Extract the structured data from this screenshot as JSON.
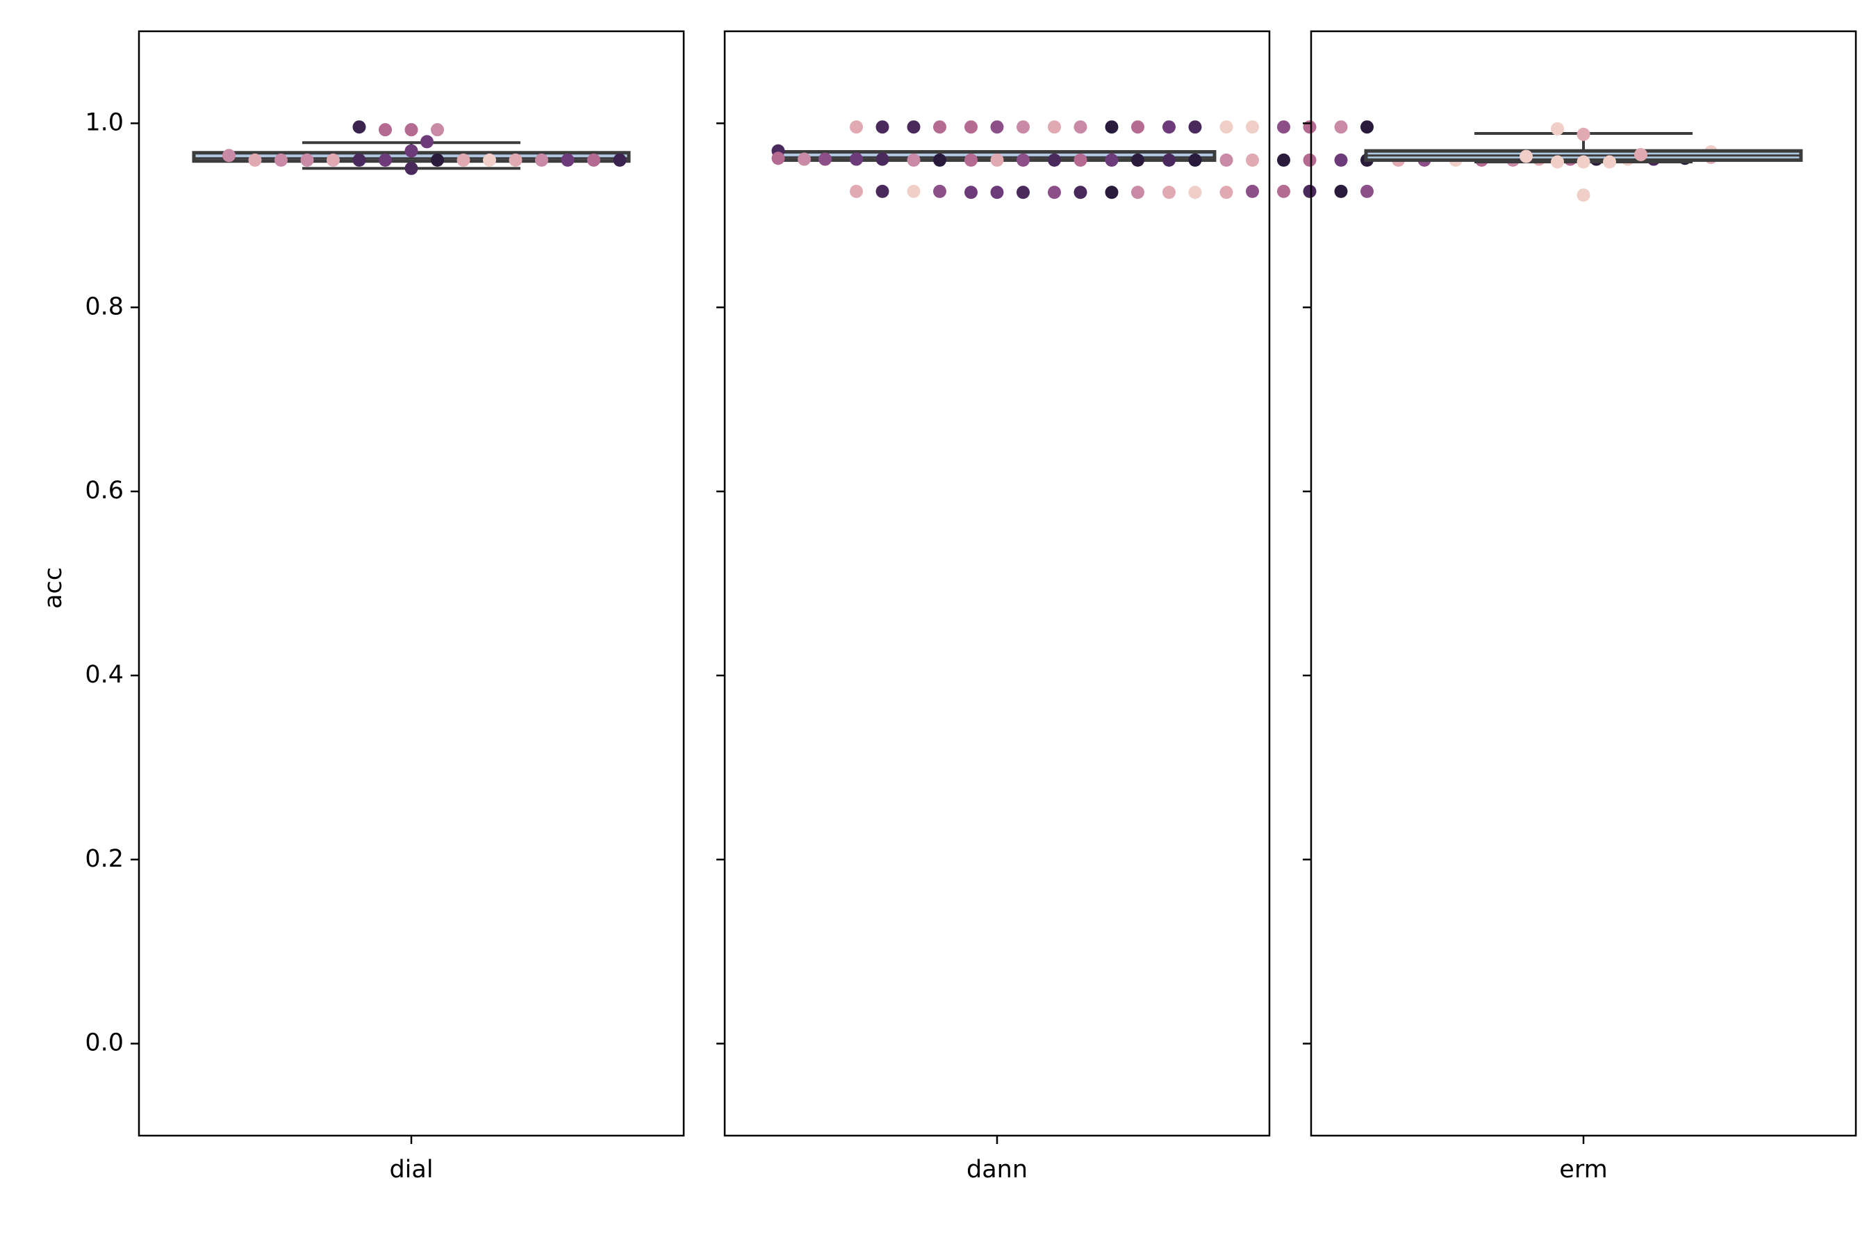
{
  "chart_data": {
    "type": "box-swarm",
    "ylabel": "acc",
    "ylim": [
      -0.1,
      1.1
    ],
    "yticks": [
      "0.0",
      "0.2",
      "0.4",
      "0.6",
      "0.8",
      "1.0"
    ],
    "ytick_values": [
      0.0,
      0.2,
      0.4,
      0.6,
      0.8,
      1.0
    ],
    "grid": false,
    "box_fill": "#b0c8e2",
    "box_edge": "#3c3c3c",
    "panels": [
      {
        "category": "dial",
        "box": {
          "q1": 0.959,
          "median": 0.962,
          "q3": 0.968,
          "whisker_low": 0.951,
          "whisker_high": 0.979
        },
        "points": [
          {
            "x": -0.1,
            "y": 0.996,
            "c": "#3b2450"
          },
          {
            "x": -0.05,
            "y": 0.993,
            "c": "#b56a92"
          },
          {
            "x": 0.0,
            "y": 0.993,
            "c": "#b56a92"
          },
          {
            "x": 0.05,
            "y": 0.993,
            "c": "#c98aa5"
          },
          {
            "x": 0.03,
            "y": 0.98,
            "c": "#6e3b7a"
          },
          {
            "x": 0.0,
            "y": 0.97,
            "c": "#6e3b7a"
          },
          {
            "x": -0.35,
            "y": 0.965,
            "c": "#c98aa5"
          },
          {
            "x": -0.3,
            "y": 0.96,
            "c": "#e1a9b2"
          },
          {
            "x": -0.25,
            "y": 0.96,
            "c": "#c98aa5"
          },
          {
            "x": -0.2,
            "y": 0.96,
            "c": "#c98aa5"
          },
          {
            "x": -0.15,
            "y": 0.96,
            "c": "#e1a9b2"
          },
          {
            "x": -0.1,
            "y": 0.96,
            "c": "#4a2a5c"
          },
          {
            "x": -0.05,
            "y": 0.96,
            "c": "#6e3b7a"
          },
          {
            "x": 0.05,
            "y": 0.96,
            "c": "#2a1b3c"
          },
          {
            "x": 0.1,
            "y": 0.96,
            "c": "#e1a9b2"
          },
          {
            "x": 0.15,
            "y": 0.96,
            "c": "#f0cfc8"
          },
          {
            "x": 0.2,
            "y": 0.96,
            "c": "#e1a9b2"
          },
          {
            "x": 0.25,
            "y": 0.96,
            "c": "#c98aa5"
          },
          {
            "x": 0.3,
            "y": 0.96,
            "c": "#6e3b7a"
          },
          {
            "x": 0.35,
            "y": 0.96,
            "c": "#b56a92"
          },
          {
            "x": 0.4,
            "y": 0.96,
            "c": "#3b2450"
          },
          {
            "x": 0.0,
            "y": 0.951,
            "c": "#4a2a5c"
          }
        ]
      },
      {
        "category": "dann",
        "box": {
          "q1": 0.96,
          "median": 0.963,
          "q3": 0.969,
          "whisker_low": 0.96,
          "whisker_high": 0.969
        },
        "points": [
          {
            "x": -0.27,
            "y": 0.996,
            "c": "#e1a9b2"
          },
          {
            "x": -0.22,
            "y": 0.996,
            "c": "#4a2a5c"
          },
          {
            "x": -0.16,
            "y": 0.996,
            "c": "#4a2a5c"
          },
          {
            "x": -0.11,
            "y": 0.996,
            "c": "#b56a92"
          },
          {
            "x": -0.05,
            "y": 0.996,
            "c": "#b56a92"
          },
          {
            "x": 0.0,
            "y": 0.996,
            "c": "#8c4f88"
          },
          {
            "x": 0.05,
            "y": 0.996,
            "c": "#c98aa5"
          },
          {
            "x": 0.11,
            "y": 0.996,
            "c": "#e1a9b2"
          },
          {
            "x": 0.16,
            "y": 0.996,
            "c": "#c98aa5"
          },
          {
            "x": 0.22,
            "y": 0.996,
            "c": "#2a1b3c"
          },
          {
            "x": 0.27,
            "y": 0.996,
            "c": "#b56a92"
          },
          {
            "x": 0.33,
            "y": 0.996,
            "c": "#6e3b7a"
          },
          {
            "x": 0.38,
            "y": 0.996,
            "c": "#4a2a5c"
          },
          {
            "x": 0.44,
            "y": 0.996,
            "c": "#f0cfc8"
          },
          {
            "x": 0.49,
            "y": 0.996,
            "c": "#f0cfc8"
          },
          {
            "x": 0.55,
            "y": 0.996,
            "c": "#8c4f88"
          },
          {
            "x": 0.6,
            "y": 0.996,
            "c": "#b56a92"
          },
          {
            "x": 0.66,
            "y": 0.996,
            "c": "#c98aa5"
          },
          {
            "x": 0.71,
            "y": 0.996,
            "c": "#2a1b3c"
          },
          {
            "x": -0.42,
            "y": 0.97,
            "c": "#4a2a5c"
          },
          {
            "x": -0.42,
            "y": 0.962,
            "c": "#b56a92"
          },
          {
            "x": -0.37,
            "y": 0.961,
            "c": "#c98aa5"
          },
          {
            "x": -0.33,
            "y": 0.961,
            "c": "#8c4f88"
          },
          {
            "x": -0.27,
            "y": 0.961,
            "c": "#6e3b7a"
          },
          {
            "x": -0.22,
            "y": 0.961,
            "c": "#4a2a5c"
          },
          {
            "x": -0.16,
            "y": 0.96,
            "c": "#c98aa5"
          },
          {
            "x": -0.11,
            "y": 0.96,
            "c": "#2a1b3c"
          },
          {
            "x": -0.05,
            "y": 0.96,
            "c": "#b56a92"
          },
          {
            "x": 0.0,
            "y": 0.96,
            "c": "#e1a9b2"
          },
          {
            "x": 0.05,
            "y": 0.96,
            "c": "#8c4f88"
          },
          {
            "x": 0.11,
            "y": 0.96,
            "c": "#4a2a5c"
          },
          {
            "x": 0.16,
            "y": 0.96,
            "c": "#b56a92"
          },
          {
            "x": 0.22,
            "y": 0.96,
            "c": "#6e3b7a"
          },
          {
            "x": 0.27,
            "y": 0.96,
            "c": "#2a1b3c"
          },
          {
            "x": 0.33,
            "y": 0.96,
            "c": "#4a2a5c"
          },
          {
            "x": 0.38,
            "y": 0.96,
            "c": "#2a1b3c"
          },
          {
            "x": 0.44,
            "y": 0.96,
            "c": "#c98aa5"
          },
          {
            "x": 0.49,
            "y": 0.96,
            "c": "#e1a9b2"
          },
          {
            "x": 0.55,
            "y": 0.96,
            "c": "#2a1b3c"
          },
          {
            "x": 0.6,
            "y": 0.96,
            "c": "#b56a92"
          },
          {
            "x": 0.66,
            "y": 0.96,
            "c": "#6e3b7a"
          },
          {
            "x": 0.71,
            "y": 0.96,
            "c": "#2a1b3c"
          },
          {
            "x": 0.77,
            "y": 0.96,
            "c": "#e1a9b2"
          },
          {
            "x": 0.82,
            "y": 0.96,
            "c": "#8c4f88"
          },
          {
            "x": 0.88,
            "y": 0.96,
            "c": "#f0cfc8"
          },
          {
            "x": 0.93,
            "y": 0.96,
            "c": "#b56a92"
          },
          {
            "x": 0.99,
            "y": 0.96,
            "c": "#c98aa5"
          },
          {
            "x": 1.04,
            "y": 0.961,
            "c": "#e1a9b2"
          },
          {
            "x": 1.1,
            "y": 0.961,
            "c": "#b56a92"
          },
          {
            "x": 1.15,
            "y": 0.961,
            "c": "#2a1b3c"
          },
          {
            "x": 1.21,
            "y": 0.961,
            "c": "#f0cfc8"
          },
          {
            "x": 1.26,
            "y": 0.961,
            "c": "#4a2a5c"
          },
          {
            "x": 1.32,
            "y": 0.962,
            "c": "#2a1b3c"
          },
          {
            "x": 1.37,
            "y": 0.963,
            "c": "#e1a9b2"
          },
          {
            "x": 1.37,
            "y": 0.969,
            "c": "#f0cfc8"
          },
          {
            "x": -0.27,
            "y": 0.926,
            "c": "#e1a9b2"
          },
          {
            "x": -0.22,
            "y": 0.926,
            "c": "#4a2a5c"
          },
          {
            "x": -0.16,
            "y": 0.926,
            "c": "#f0cfc8"
          },
          {
            "x": -0.11,
            "y": 0.926,
            "c": "#8c4f88"
          },
          {
            "x": -0.05,
            "y": 0.925,
            "c": "#6e3b7a"
          },
          {
            "x": 0.0,
            "y": 0.925,
            "c": "#6e3b7a"
          },
          {
            "x": 0.05,
            "y": 0.925,
            "c": "#4a2a5c"
          },
          {
            "x": 0.11,
            "y": 0.925,
            "c": "#8c4f88"
          },
          {
            "x": 0.16,
            "y": 0.925,
            "c": "#4a2a5c"
          },
          {
            "x": 0.22,
            "y": 0.925,
            "c": "#2a1b3c"
          },
          {
            "x": 0.27,
            "y": 0.925,
            "c": "#c98aa5"
          },
          {
            "x": 0.33,
            "y": 0.925,
            "c": "#e1a9b2"
          },
          {
            "x": 0.38,
            "y": 0.925,
            "c": "#f0cfc8"
          },
          {
            "x": 0.44,
            "y": 0.925,
            "c": "#e1a9b2"
          },
          {
            "x": 0.49,
            "y": 0.926,
            "c": "#8c4f88"
          },
          {
            "x": 0.55,
            "y": 0.926,
            "c": "#b56a92"
          },
          {
            "x": 0.6,
            "y": 0.926,
            "c": "#4a2a5c"
          },
          {
            "x": 0.66,
            "y": 0.926,
            "c": "#2a1b3c"
          },
          {
            "x": 0.71,
            "y": 0.926,
            "c": "#8c4f88"
          }
        ]
      },
      {
        "category": "erm",
        "box": {
          "q1": 0.96,
          "median": 0.965,
          "q3": 0.97,
          "whisker_low": 0.958,
          "whisker_high": 0.989
        },
        "points": [
          {
            "x": -0.05,
            "y": 0.994,
            "c": "#f0cfc8"
          },
          {
            "x": 0.0,
            "y": 0.988,
            "c": "#e1a9b2"
          },
          {
            "x": -0.11,
            "y": 0.964,
            "c": "#f0cfc8"
          },
          {
            "x": -0.05,
            "y": 0.958,
            "c": "#f0cfc8"
          },
          {
            "x": 0.0,
            "y": 0.958,
            "c": "#f0cfc8"
          },
          {
            "x": 0.05,
            "y": 0.958,
            "c": "#f0cfc8"
          },
          {
            "x": 0.11,
            "y": 0.966,
            "c": "#e1a9b2"
          },
          {
            "x": 0.0,
            "y": 0.922,
            "c": "#f0cfc8"
          }
        ]
      }
    ]
  }
}
